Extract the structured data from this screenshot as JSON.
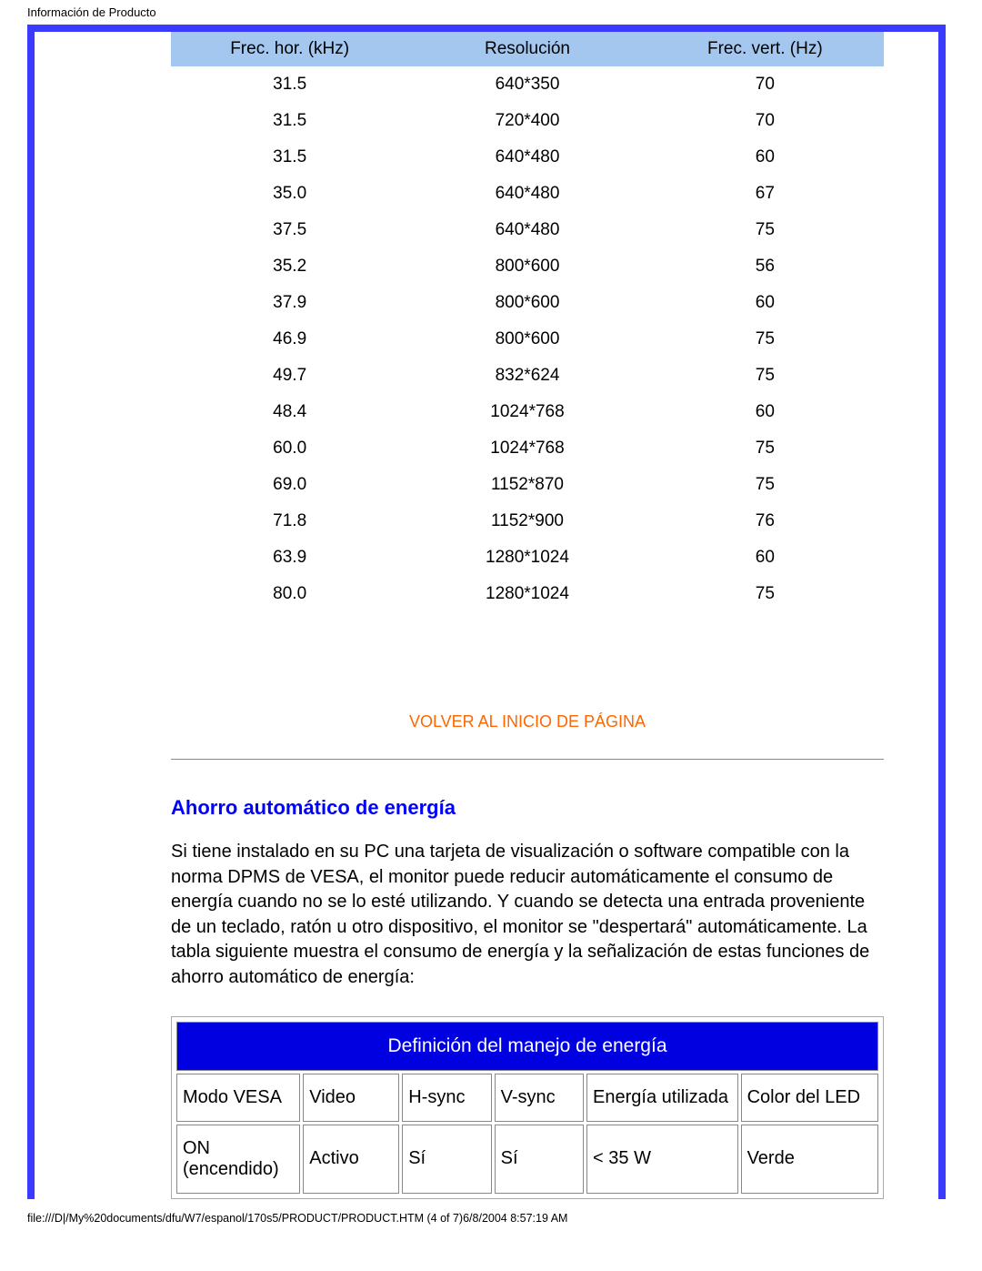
{
  "header": {
    "title": "Información de Producto"
  },
  "resolution_table": {
    "type": "table",
    "header_bg": "#a3c7ee",
    "columns": [
      "Frec. hor. (kHz)",
      "Resolución",
      "Frec. vert. (Hz)"
    ],
    "rows": [
      [
        "31.5",
        "640*350",
        "70"
      ],
      [
        "31.5",
        "720*400",
        "70"
      ],
      [
        "31.5",
        "640*480",
        "60"
      ],
      [
        "35.0",
        "640*480",
        "67"
      ],
      [
        "37.5",
        "640*480",
        "75"
      ],
      [
        "35.2",
        "800*600",
        "56"
      ],
      [
        "37.9",
        "800*600",
        "60"
      ],
      [
        "46.9",
        "800*600",
        "75"
      ],
      [
        "49.7",
        "832*624",
        "75"
      ],
      [
        "48.4",
        "1024*768",
        "60"
      ],
      [
        "60.0",
        "1024*768",
        "75"
      ],
      [
        "69.0",
        "1152*870",
        "75"
      ],
      [
        "71.8",
        "1152*900",
        "76"
      ],
      [
        "63.9",
        "1280*1024",
        "60"
      ],
      [
        "80.0",
        "1280*1024",
        "75"
      ]
    ]
  },
  "back_top_link": "VOLVER AL INICIO DE PÁGINA",
  "section": {
    "title": "Ahorro automático de energía",
    "text": "Si tiene instalado en su PC una tarjeta de visualización o software compatible con la norma DPMS de VESA, el monitor puede reducir automáticamente el consumo de energía cuando no se lo esté utilizando. Y cuando se detecta una entrada proveniente de un teclado, ratón u otro dispositivo, el monitor se \"despertará\" automáticamente. La tabla siguiente muestra el consumo de energía y la señalización de estas funciones de ahorro automático de energía:"
  },
  "power_table": {
    "type": "table",
    "title": "Definición del manejo de energía",
    "title_bg": "#0000e0",
    "title_color": "#ffffff",
    "col_widths": [
      "18%",
      "14%",
      "13%",
      "13%",
      "22%",
      "20%"
    ],
    "header_row": [
      "Modo VESA",
      "Video",
      "H-sync",
      "V-sync",
      "Energía utilizada",
      "Color del LED"
    ],
    "rows": [
      [
        "ON (encendido)",
        "Activo",
        "Sí",
        "Sí",
        "< 35 W",
        "Verde"
      ]
    ]
  },
  "footer": {
    "path": "file:///D|/My%20documents/dfu/W7/espanol/170s5/PRODUCT/PRODUCT.HTM (4 of 7)6/8/2004 8:57:19 AM"
  },
  "colors": {
    "frame": "#3b3bff",
    "link": "#ff6600",
    "heading": "#0000ff"
  }
}
